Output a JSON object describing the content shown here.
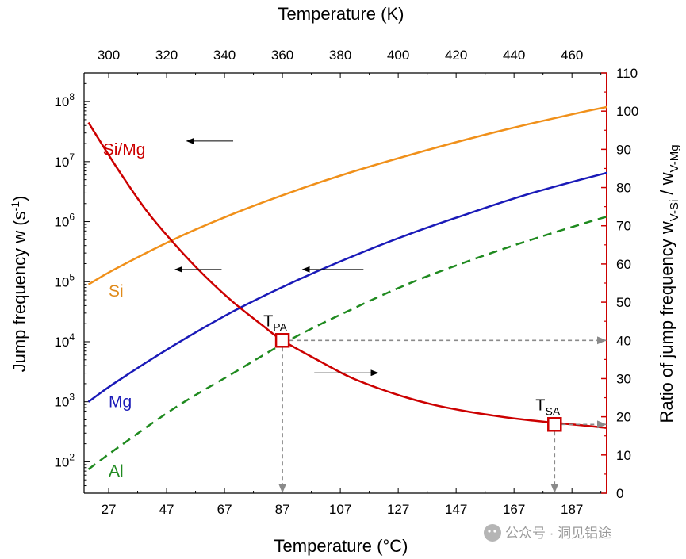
{
  "chart_data": {
    "type": "line",
    "title": "",
    "x_bottom": {
      "label": "Temperature (°C)",
      "ticks": [
        27,
        47,
        67,
        87,
        107,
        127,
        147,
        167,
        187
      ],
      "range": [
        18.5,
        199
      ]
    },
    "x_top": {
      "label": "Temperature (K)",
      "ticks": [
        300,
        320,
        340,
        360,
        380,
        400,
        420,
        440,
        460
      ]
    },
    "y_left": {
      "label_main": "Jump frequency w (s",
      "label_sup": "-1",
      "label_close": ")",
      "scale": "log",
      "range": [
        30,
        300000000
      ],
      "ticks": [
        {
          "base": "10",
          "exp": "2",
          "value": 100
        },
        {
          "base": "10",
          "exp": "3",
          "value": 1000
        },
        {
          "base": "10",
          "exp": "4",
          "value": 10000
        },
        {
          "base": "10",
          "exp": "5",
          "value": 100000
        },
        {
          "base": "10",
          "exp": "6",
          "value": 1000000
        },
        {
          "base": "10",
          "exp": "7",
          "value": 10000000
        },
        {
          "base": "10",
          "exp": "8",
          "value": 100000000
        }
      ]
    },
    "y_right": {
      "label_main": "Ratio of jump frequency w",
      "label_sub1": "V-Si",
      "label_mid": " / w",
      "label_sub2": "V-Mg",
      "scale": "linear",
      "range": [
        0,
        110
      ],
      "ticks": [
        0,
        10,
        20,
        30,
        40,
        50,
        60,
        70,
        80,
        90,
        100,
        110
      ],
      "color": "#cc0000"
    },
    "series": [
      {
        "name": "Si",
        "axis": "left",
        "color": "#f0901a",
        "dash": false,
        "x": [
          20,
          30,
          50,
          70,
          90,
          110,
          130,
          150,
          170,
          190,
          200
        ],
        "y": [
          90000,
          170000,
          520000,
          1350000,
          3100000,
          6500000,
          12500000,
          23000000,
          40000000,
          66000000,
          83000000
        ]
      },
      {
        "name": "Mg",
        "axis": "left",
        "color": "#1a1ab8",
        "dash": false,
        "x": [
          20,
          30,
          50,
          70,
          90,
          110,
          130,
          150,
          170,
          190,
          200
        ],
        "y": [
          1000,
          2200,
          9000,
          32000,
          95000,
          250000,
          600000,
          1300000,
          2700000,
          5000000,
          6700000
        ]
      },
      {
        "name": "Al",
        "axis": "left",
        "color": "#1f8a1f",
        "dash": true,
        "x": [
          20,
          30,
          50,
          70,
          90,
          110,
          130,
          150,
          170,
          190,
          200
        ],
        "y": [
          75,
          170,
          800,
          3000,
          11000,
          33000,
          90000,
          210000,
          450000,
          900000,
          1250000
        ]
      },
      {
        "name": "Si/Mg",
        "axis": "right",
        "color": "#cc0000",
        "dash": false,
        "x": [
          20,
          30,
          40,
          50,
          60,
          70,
          80,
          87,
          100,
          110,
          120,
          130,
          140,
          150,
          160,
          170,
          180,
          190,
          200
        ],
        "y": [
          97,
          85,
          74,
          65,
          57,
          50,
          44,
          40,
          34.5,
          30.5,
          27.5,
          25,
          23,
          21.5,
          20.3,
          19.3,
          18.5,
          17.8,
          17
        ]
      }
    ],
    "series_labels": [
      {
        "text": "Si/Mg",
        "color": "#cc0000",
        "x": 25,
        "axis": "right",
        "y": 90
      },
      {
        "text": "Si",
        "color": "#e08a1a",
        "x": 27,
        "axis": "left",
        "y": 70000
      },
      {
        "text": "Mg",
        "color": "#1a1ab8",
        "x": 27,
        "axis": "left",
        "y": 1000
      },
      {
        "text": "Al",
        "color": "#1f8a1f",
        "x": 27,
        "axis": "left",
        "y": 70
      }
    ],
    "arrows": [
      {
        "x_from": 70,
        "x_to": 54,
        "axis": "left",
        "y": 22000000
      },
      {
        "x_from": 66,
        "x_to": 50,
        "axis": "left",
        "y": 160000
      },
      {
        "x_from": 115,
        "x_to": 94,
        "axis": "left",
        "y": 160000
      },
      {
        "x_from": 98,
        "x_to": 120,
        "axis": "right",
        "y": 31.5
      }
    ],
    "markers": [
      {
        "label_main": "T",
        "label_sub": "PA",
        "x": 87,
        "ratio": 40
      },
      {
        "label_main": "T",
        "label_sub": "SA",
        "x": 181,
        "ratio": 18
      }
    ],
    "grid": false
  },
  "watermark": "公众号 · 洞见铝途"
}
